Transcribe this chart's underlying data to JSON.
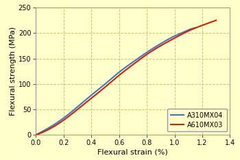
{
  "title": "",
  "xlabel": "Flexural strain (%)",
  "ylabel": "Flexural strength (MPa)",
  "background_color": "#FFFFCC",
  "xlim": [
    0,
    1.4
  ],
  "ylim": [
    0,
    250
  ],
  "xticks": [
    0,
    0.2,
    0.4,
    0.6,
    0.8,
    1.0,
    1.2,
    1.4
  ],
  "yticks": [
    0,
    50,
    100,
    150,
    200,
    250
  ],
  "grid_color": "#C8C870",
  "series": [
    {
      "label": "A310MX04",
      "color": "#4472C4",
      "x": [
        0,
        0.1,
        0.2,
        0.3,
        0.4,
        0.5,
        0.6,
        0.7,
        0.8,
        0.9,
        1.0,
        1.05,
        1.1,
        1.15
      ],
      "y": [
        0,
        15,
        33,
        55,
        78,
        100,
        123,
        143,
        162,
        179,
        194,
        200,
        206,
        210
      ]
    },
    {
      "label": "A610MX03",
      "color": "#CC2200",
      "x": [
        0,
        0.1,
        0.2,
        0.3,
        0.4,
        0.5,
        0.6,
        0.7,
        0.8,
        0.9,
        1.0,
        1.1,
        1.2,
        1.25,
        1.3
      ],
      "y": [
        0,
        12,
        29,
        50,
        72,
        94,
        117,
        138,
        158,
        175,
        190,
        204,
        215,
        220,
        225
      ]
    }
  ],
  "line_width": 1.5,
  "tick_fontsize": 7,
  "label_fontsize": 8,
  "legend_fontsize": 7
}
